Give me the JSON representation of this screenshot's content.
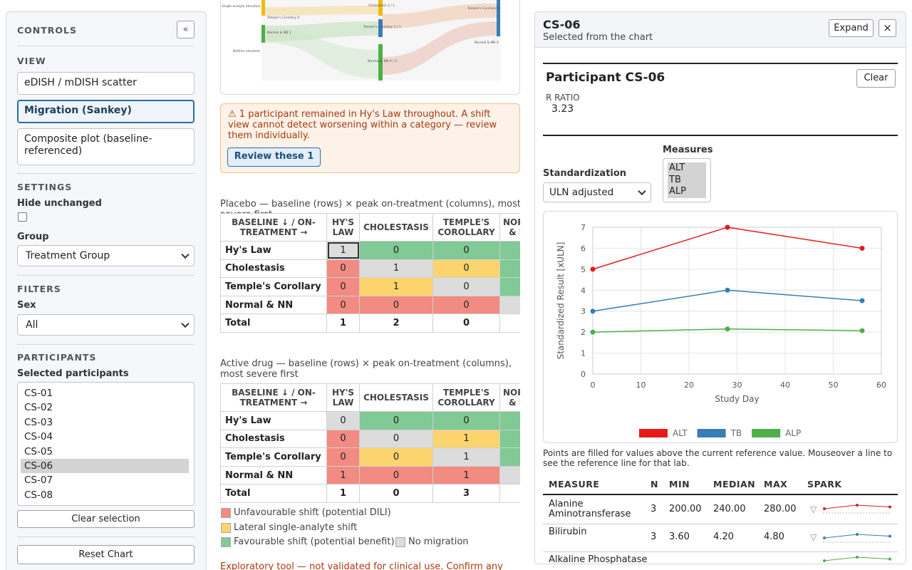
{
  "controls": {
    "title": "CONTROLS",
    "collapse": "«",
    "view": {
      "heading": "VIEW",
      "options": [
        "eDISH / mDISH scatter",
        "Migration (Sankey)",
        "Composite plot (baseline-referenced)"
      ],
      "selected": 1
    },
    "settings": {
      "heading": "SETTINGS",
      "hide_unchanged": "Hide unchanged",
      "group_label": "Group",
      "group_value": "Treatment Group"
    },
    "filters": {
      "heading": "FILTERS",
      "sex_label": "Sex",
      "sex_value": "All"
    },
    "participants": {
      "heading": "PARTICIPANTS",
      "label": "Selected participants",
      "items": [
        "CS-01",
        "CS-02",
        "CS-03",
        "CS-04",
        "CS-05",
        "CS-06",
        "CS-07",
        "CS-08"
      ],
      "selected": 5,
      "clear": "Clear selection",
      "reset": "Reset Chart"
    }
  },
  "sankey": {
    "labels": [
      "Single-analyte elevation",
      "Temple's Corollary 0",
      "Normal & NN 1",
      "Neither elevated",
      "Cholestasis 1 / 1",
      "Temple's Corollary 1 / 1",
      "Normal & NN 0 / 3",
      "Temple's Corollary 0",
      "Normal & NN 0"
    ]
  },
  "warning": {
    "text": "⚠ 1 participant remained in Hy's Law throughout. A shift view cannot detect worsening within a category — review them individually.",
    "button": "Review these 1"
  },
  "tables": [
    {
      "caption": "Placebo — baseline (rows) × peak on-treatment (columns), most severe first",
      "header": [
        "BASELINE ↓ / ON-TREATMENT →",
        "HY'S LAW",
        "CHOLESTASIS",
        "TEMPLE'S COROLLARY",
        "NORMAL & NN"
      ],
      "rows": [
        {
          "label": "Hy's Law",
          "cells": [
            1,
            0,
            0
          ]
        },
        {
          "label": "Cholestasis",
          "cells": [
            0,
            1,
            0
          ]
        },
        {
          "label": "Temple's Corollary",
          "cells": [
            0,
            1,
            0
          ]
        },
        {
          "label": "Normal & NN",
          "cells": [
            0,
            0,
            0
          ]
        }
      ],
      "total": {
        "label": "Total",
        "cells": [
          1,
          2,
          0
        ]
      }
    },
    {
      "caption": "Active drug — baseline (rows) × peak on-treatment (columns), most severe first",
      "header": [
        "BASELINE ↓ / ON-TREATMENT →",
        "HY'S LAW",
        "CHOLESTASIS",
        "TEMPLE'S COROLLARY",
        "NORMAL & NN"
      ],
      "rows": [
        {
          "label": "Hy's Law",
          "cells": [
            0,
            0,
            0
          ]
        },
        {
          "label": "Cholestasis",
          "cells": [
            0,
            0,
            1
          ]
        },
        {
          "label": "Temple's Corollary",
          "cells": [
            0,
            0,
            1
          ]
        },
        {
          "label": "Normal & NN",
          "cells": [
            1,
            0,
            1
          ]
        }
      ],
      "total": {
        "label": "Total",
        "cells": [
          1,
          0,
          3
        ]
      }
    }
  ],
  "legend": [
    "Unfavourable shift (potential DILI)",
    "Lateral single-analyte shift",
    "Favourable shift (potential benefit)",
    "No migration"
  ],
  "footer": "Exploratory tool — not validated for clinical use. Confirm any",
  "detail": {
    "title": "CS-06",
    "subtitle": "Selected from the chart",
    "expand": "Expand",
    "close": "×",
    "participant": "Participant CS-06",
    "clear": "Clear",
    "ratio_label": "R RATIO",
    "ratio_value": 3.23,
    "standardization_label": "Standardization",
    "standardization_value": "ULN adjusted",
    "measures_label": "Measures",
    "measures": [
      "ALT",
      "TB",
      "ALP"
    ],
    "note": "Points are filled for values above the current reference value. Mouseover a line to see the reference line for that lab.",
    "stats": {
      "header": [
        "MEASURE",
        "N",
        "MIN",
        "MEDIAN",
        "MAX",
        "SPARK"
      ],
      "rows": [
        {
          "measure": "Alanine Aminotransferase",
          "n": "3",
          "min": "200.00",
          "median": "240.00",
          "max": "280.00",
          "trend": "▽"
        },
        {
          "measure": "Bilirubin",
          "n": "3",
          "min": "3.60",
          "median": "4.20",
          "max": "4.80",
          "trend": "▽"
        },
        {
          "measure": "Alkaline Phosphatase"
        }
      ]
    }
  },
  "chart_data": {
    "type": "line",
    "x_label": "Study Day",
    "y_label": "Standardized Result [xULN]",
    "x": [
      0,
      28,
      56
    ],
    "series": [
      {
        "name": "ALT",
        "color": "#e41a1c",
        "values": [
          5,
          7,
          6
        ]
      },
      {
        "name": "TB",
        "color": "#377eb8",
        "values": [
          3,
          4,
          3.5
        ]
      },
      {
        "name": "ALP",
        "color": "#4daf4a",
        "values": [
          2,
          2.15,
          2.07
        ]
      }
    ],
    "xlim": [
      0,
      60
    ],
    "ylim": [
      0,
      7
    ],
    "xticks": [
      0,
      10,
      20,
      30,
      40,
      50,
      60
    ],
    "yticks": [
      0,
      1,
      2,
      3,
      4,
      5,
      6,
      7
    ],
    "grid": true
  }
}
